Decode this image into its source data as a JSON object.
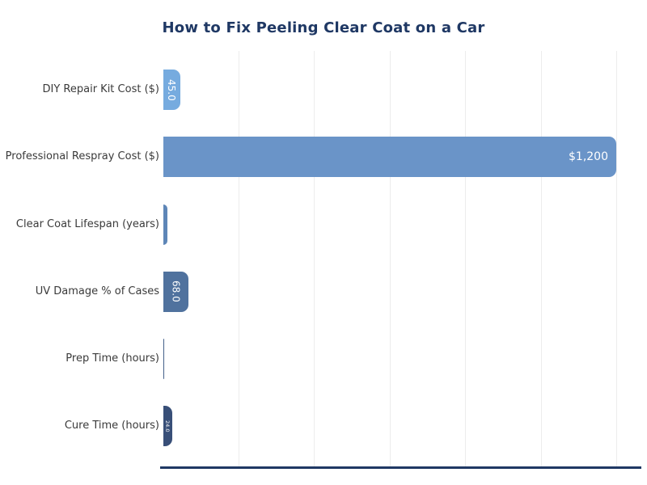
{
  "page": {
    "background": "#ffffff"
  },
  "chart_data": {
    "type": "bar",
    "orientation": "horizontal",
    "title": "How to Fix Peeling Clear Coat on a Car",
    "title_color": "#1f3864",
    "categories": [
      "DIY Repair Kit Cost ($)",
      "Professional Respray Cost ($)",
      "Clear Coat Lifespan (years)",
      "UV Damage % of Cases",
      "Prep Time (hours)",
      "Cure Time (hours)"
    ],
    "values": [
      45,
      1200,
      12,
      68,
      4,
      24
    ],
    "value_labels": [
      "45.0",
      "$1,200",
      "",
      "68.0",
      "",
      "24.0"
    ],
    "value_label_orientation": [
      "vertical",
      "horizontal",
      "none",
      "vertical",
      "none",
      "vertical"
    ],
    "value_label_size_px": [
      12,
      14,
      0,
      12,
      0,
      6.5
    ],
    "value_label_color": "#ffffff",
    "bar_colors": [
      "#76abdf",
      "#6a94c8",
      "#5e86b7",
      "#50729e",
      "#44608a",
      "#384f78"
    ],
    "category_label_color": "#3a3a3a",
    "xlim": [
      0,
      1265
    ],
    "x_gridline_values": [
      200,
      400,
      600,
      800,
      1000,
      1200
    ],
    "x_tick_labels": "none",
    "gridline_color": "#ececec",
    "grid": "vertical-only",
    "axis_line_color": "#1f3864",
    "legend": "none"
  }
}
